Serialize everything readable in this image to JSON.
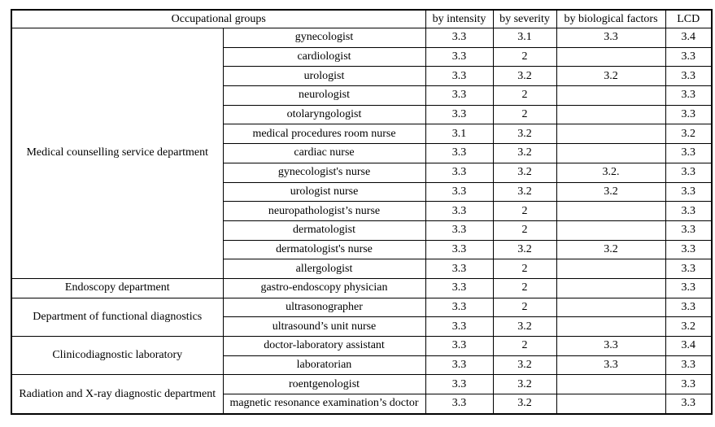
{
  "table": {
    "header": {
      "occupational_groups": "Occupational groups",
      "by_intensity": "by intensity",
      "by_severity": "by severity",
      "by_biological_factors": "by biological factors",
      "lcd": "LCD"
    },
    "groups": [
      {
        "department": "Medical counselling service department",
        "rows": [
          {
            "occupation": "gynecologist",
            "by_intensity": "3.3",
            "by_severity": "3.1",
            "by_biological_factors": "3.3",
            "lcd": "3.4"
          },
          {
            "occupation": "cardiologist",
            "by_intensity": "3.3",
            "by_severity": "2",
            "by_biological_factors": "",
            "lcd": "3.3"
          },
          {
            "occupation": "urologist",
            "by_intensity": "3.3",
            "by_severity": "3.2",
            "by_biological_factors": "3.2",
            "lcd": "3.3"
          },
          {
            "occupation": "neurologist",
            "by_intensity": "3.3",
            "by_severity": "2",
            "by_biological_factors": "",
            "lcd": "3.3"
          },
          {
            "occupation": "otolaryngologist",
            "by_intensity": "3.3",
            "by_severity": "2",
            "by_biological_factors": "",
            "lcd": "3.3"
          },
          {
            "occupation": "medical procedures room nurse",
            "by_intensity": "3.1",
            "by_severity": "3.2",
            "by_biological_factors": "",
            "lcd": "3.2"
          },
          {
            "occupation": "cardiac nurse",
            "by_intensity": "3.3",
            "by_severity": "3.2",
            "by_biological_factors": "",
            "lcd": "3.3"
          },
          {
            "occupation": "gynecologist's nurse",
            "by_intensity": "3.3",
            "by_severity": "3.2",
            "by_biological_factors": "3.2.",
            "lcd": "3.3"
          },
          {
            "occupation": "urologist nurse",
            "by_intensity": "3.3",
            "by_severity": "3.2",
            "by_biological_factors": "3.2",
            "lcd": "3.3"
          },
          {
            "occupation": "neuropathologist’s nurse",
            "by_intensity": "3.3",
            "by_severity": "2",
            "by_biological_factors": "",
            "lcd": "3.3"
          },
          {
            "occupation": "dermatologist",
            "by_intensity": "3.3",
            "by_severity": "2",
            "by_biological_factors": "",
            "lcd": "3.3"
          },
          {
            "occupation": "dermatologist's nurse",
            "by_intensity": "3.3",
            "by_severity": "3.2",
            "by_biological_factors": "3.2",
            "lcd": "3.3"
          },
          {
            "occupation": "allergologist",
            "by_intensity": "3.3",
            "by_severity": "2",
            "by_biological_factors": "",
            "lcd": "3.3"
          }
        ]
      },
      {
        "department": "Endoscopy department",
        "rows": [
          {
            "occupation": "gastro-endoscopy physician",
            "by_intensity": "3.3",
            "by_severity": "2",
            "by_biological_factors": "",
            "lcd": "3.3"
          }
        ]
      },
      {
        "department": "Department of functional diagnostics",
        "rows": [
          {
            "occupation": "ultrasonographer",
            "by_intensity": "3.3",
            "by_severity": "2",
            "by_biological_factors": "",
            "lcd": "3.3"
          },
          {
            "occupation": "ultrasound’s unit nurse",
            "by_intensity": "3.3",
            "by_severity": "3.2",
            "by_biological_factors": "",
            "lcd": "3.2"
          }
        ]
      },
      {
        "department": "Clinicodiagnostic laboratory",
        "rows": [
          {
            "occupation": "doctor-laboratory assistant",
            "by_intensity": "3.3",
            "by_severity": "2",
            "by_biological_factors": "3.3",
            "lcd": "3.4"
          },
          {
            "occupation": "laboratorian",
            "by_intensity": "3.3",
            "by_severity": "3.2",
            "by_biological_factors": "3.3",
            "lcd": "3.3"
          }
        ]
      },
      {
        "department": "Radiation and X-ray diagnostic department",
        "rows": [
          {
            "occupation": "roentgenologist",
            "by_intensity": "3.3",
            "by_severity": "3.2",
            "by_biological_factors": "",
            "lcd": "3.3"
          },
          {
            "occupation": "magnetic resonance examination’s doctor",
            "by_intensity": "3.3",
            "by_severity": "3.2",
            "by_biological_factors": "",
            "lcd": "3.3"
          }
        ]
      }
    ]
  }
}
